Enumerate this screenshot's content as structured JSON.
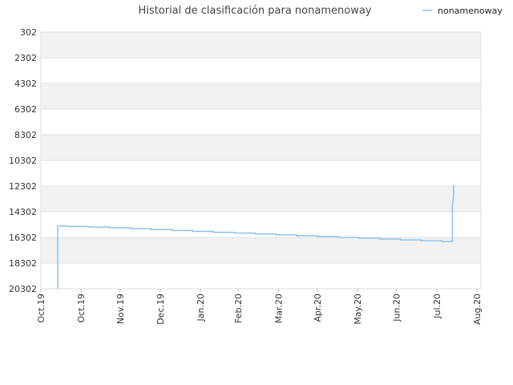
{
  "chart_data": {
    "type": "line",
    "title": "Historial de clasificación para nonamenoway",
    "xlabel": "",
    "ylabel": "",
    "y_inverted": true,
    "ylim": [
      302,
      20302
    ],
    "y_ticks": [
      "302",
      "2302",
      "4302",
      "6302",
      "8302",
      "10302",
      "12302",
      "14302",
      "16302",
      "18302",
      "20302"
    ],
    "y_tick_values": [
      302,
      2302,
      4302,
      6302,
      8302,
      10302,
      12302,
      14302,
      16302,
      18302,
      20302
    ],
    "x_ticks": [
      "Oct.19",
      "Oct.19",
      "Nov.19",
      "Dec.19",
      "Jan.20",
      "Feb.20",
      "Mar.20",
      "Apr.20",
      "May.20",
      "Jun.20",
      "Jul.20",
      "Aug.20"
    ],
    "x_tick_dates": [
      "2019-09-30",
      "2019-10-31",
      "2019-11-30",
      "2019-12-31",
      "2020-01-31",
      "2020-02-29",
      "2020-03-31",
      "2020-04-30",
      "2020-05-31",
      "2020-06-30",
      "2020-07-31",
      "2020-08-31"
    ],
    "xlim": [
      "2019-09-30",
      "2020-09-03"
    ],
    "grid": true,
    "legend_position": "top-right",
    "series": [
      {
        "name": "nonamenoway",
        "color": "#8ec2ee",
        "x": [
          "2019-10-13",
          "2019-10-13",
          "2019-10-13",
          "2019-10-13",
          "2019-10-21",
          "2019-10-21",
          "2019-11-06",
          "2019-11-06",
          "2019-11-22",
          "2019-11-22",
          "2019-12-08",
          "2019-12-08",
          "2019-12-24",
          "2019-12-24",
          "2020-01-09",
          "2020-01-09",
          "2020-01-25",
          "2020-01-25",
          "2020-02-10",
          "2020-02-10",
          "2020-02-26",
          "2020-02-26",
          "2020-03-13",
          "2020-03-13",
          "2020-03-29",
          "2020-03-29",
          "2020-04-14",
          "2020-04-14",
          "2020-04-30",
          "2020-04-30",
          "2020-05-16",
          "2020-05-16",
          "2020-06-01",
          "2020-06-01",
          "2020-06-17",
          "2020-06-17",
          "2020-07-03",
          "2020-07-03",
          "2020-07-19",
          "2020-07-19",
          "2020-08-04",
          "2020-08-04",
          "2020-08-12",
          "2020-08-12",
          "2020-08-12",
          "2020-08-13",
          "2020-08-13"
        ],
        "values": [
          20302,
          17800,
          15400,
          15400,
          15400,
          15450,
          15450,
          15500,
          15500,
          15550,
          15550,
          15620,
          15620,
          15690,
          15690,
          15760,
          15760,
          15830,
          15830,
          15900,
          15900,
          15960,
          15960,
          16030,
          16030,
          16100,
          16100,
          16170,
          16170,
          16240,
          16240,
          16300,
          16300,
          16360,
          16360,
          16430,
          16430,
          16500,
          16500,
          16560,
          16560,
          16620,
          16620,
          16620,
          13900,
          12900,
          12250
        ]
      }
    ]
  }
}
